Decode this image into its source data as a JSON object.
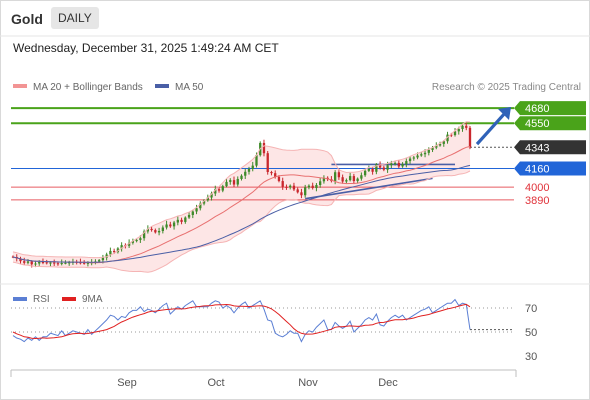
{
  "header": {
    "asset": "Gold",
    "timeframe": "DAILY"
  },
  "datetime": "Wednesday, December 31, 2025 1:49:24 AM CET",
  "legend": {
    "ma20": "MA 20 + Bollinger Bands",
    "ma50": "MA 50",
    "credit": "Research © 2025 Trading Central"
  },
  "rsi_legend": {
    "rsi": "RSI",
    "ma9": "9MA"
  },
  "colors": {
    "green": "#4aa31a",
    "blue": "#2165d8",
    "red": "#e0323a",
    "dark": "#333333",
    "ma20": "#e87070",
    "ma50": "#4a5fa6",
    "band_fill": "#fde2e2",
    "rsi": "#5b7fd4",
    "ma9": "#e02020"
  },
  "chart_data": [
    {
      "type": "candlestick",
      "title": "Gold",
      "timeframe": "DAILY",
      "x_labels": [
        "Sep",
        "Oct",
        "Nov",
        "Dec"
      ],
      "ylim": [
        3200,
        4750
      ],
      "levels": [
        {
          "value": 4680,
          "label": "4680",
          "color": "green",
          "style": "solid"
        },
        {
          "value": 4550,
          "label": "4550",
          "color": "green",
          "style": "solid"
        },
        {
          "value": 4343,
          "label": "4343",
          "color": "dark",
          "style": "dotted",
          "note": "last price"
        },
        {
          "value": 4160,
          "label": "4160",
          "color": "blue",
          "style": "solid"
        },
        {
          "value": 4000,
          "label": "4000",
          "color": "red",
          "style": "thin"
        },
        {
          "value": 3890,
          "label": "3890",
          "color": "red",
          "style": "thin"
        }
      ],
      "close_series": [
        3398,
        3385,
        3362,
        3348,
        3360,
        3335,
        3342,
        3355,
        3352,
        3346,
        3350,
        3344,
        3341,
        3346,
        3348,
        3352,
        3356,
        3352,
        3348,
        3342,
        3348,
        3352,
        3360,
        3371,
        3392,
        3420,
        3450,
        3440,
        3472,
        3500,
        3495,
        3520,
        3535,
        3545,
        3560,
        3618,
        3640,
        3630,
        3610,
        3622,
        3652,
        3678,
        3662,
        3695,
        3718,
        3700,
        3738,
        3760,
        3790,
        3818,
        3858,
        3885,
        3910,
        3945,
        3982,
        3970,
        4008,
        4045,
        4060,
        4022,
        4070,
        4098,
        4132,
        4156,
        4185,
        4275,
        4380,
        4292,
        4130,
        4120,
        4088,
        4052,
        4002,
        3998,
        4012,
        3980,
        3955,
        3930,
        3998,
        4012,
        3992,
        4018,
        4050,
        4080,
        4068,
        4052,
        4128,
        4085,
        4048,
        4060,
        4095,
        4052,
        4073,
        4102,
        4140,
        4156,
        4132,
        4196,
        4168,
        4150,
        4188,
        4205,
        4208,
        4178,
        4198,
        4224,
        4246,
        4255,
        4272,
        4283,
        4295,
        4320,
        4340,
        4358,
        4372,
        4395,
        4452,
        4448,
        4480,
        4500,
        4528,
        4510,
        4343
      ],
      "indicators": [
        "MA 20 + Bollinger Bands",
        "MA 50"
      ]
    },
    {
      "type": "line",
      "title": "RSI",
      "series": [
        {
          "name": "RSI"
        },
        {
          "name": "9MA"
        }
      ],
      "y_ticks": [
        70,
        50,
        30
      ],
      "ylim": [
        20,
        80
      ],
      "rsi_values": [
        50,
        47,
        45,
        42,
        44,
        41,
        43,
        46,
        48,
        47,
        49,
        47,
        45,
        48,
        50,
        51,
        52,
        50,
        48,
        46,
        49,
        51,
        53,
        55,
        57,
        59,
        62,
        60,
        63,
        65,
        63,
        66,
        67,
        66,
        68,
        70,
        71,
        69,
        66,
        68,
        70,
        71,
        68,
        70,
        72,
        69,
        71,
        72,
        73,
        74,
        73,
        72,
        71,
        73,
        74,
        72,
        73,
        74,
        71,
        66,
        69,
        71,
        72,
        73,
        74,
        75,
        76,
        68,
        58,
        56,
        52,
        49,
        47,
        48,
        50,
        47,
        46,
        45,
        50,
        52,
        50,
        53,
        55,
        57,
        55,
        54,
        59,
        55,
        52,
        53,
        56,
        53,
        55,
        57,
        60,
        61,
        58,
        62,
        59,
        57,
        60,
        62,
        63,
        60,
        61,
        63,
        64,
        65,
        66,
        67,
        67,
        68,
        69,
        70,
        71,
        72,
        73,
        72,
        74,
        75,
        76,
        74,
        52
      ]
    }
  ]
}
